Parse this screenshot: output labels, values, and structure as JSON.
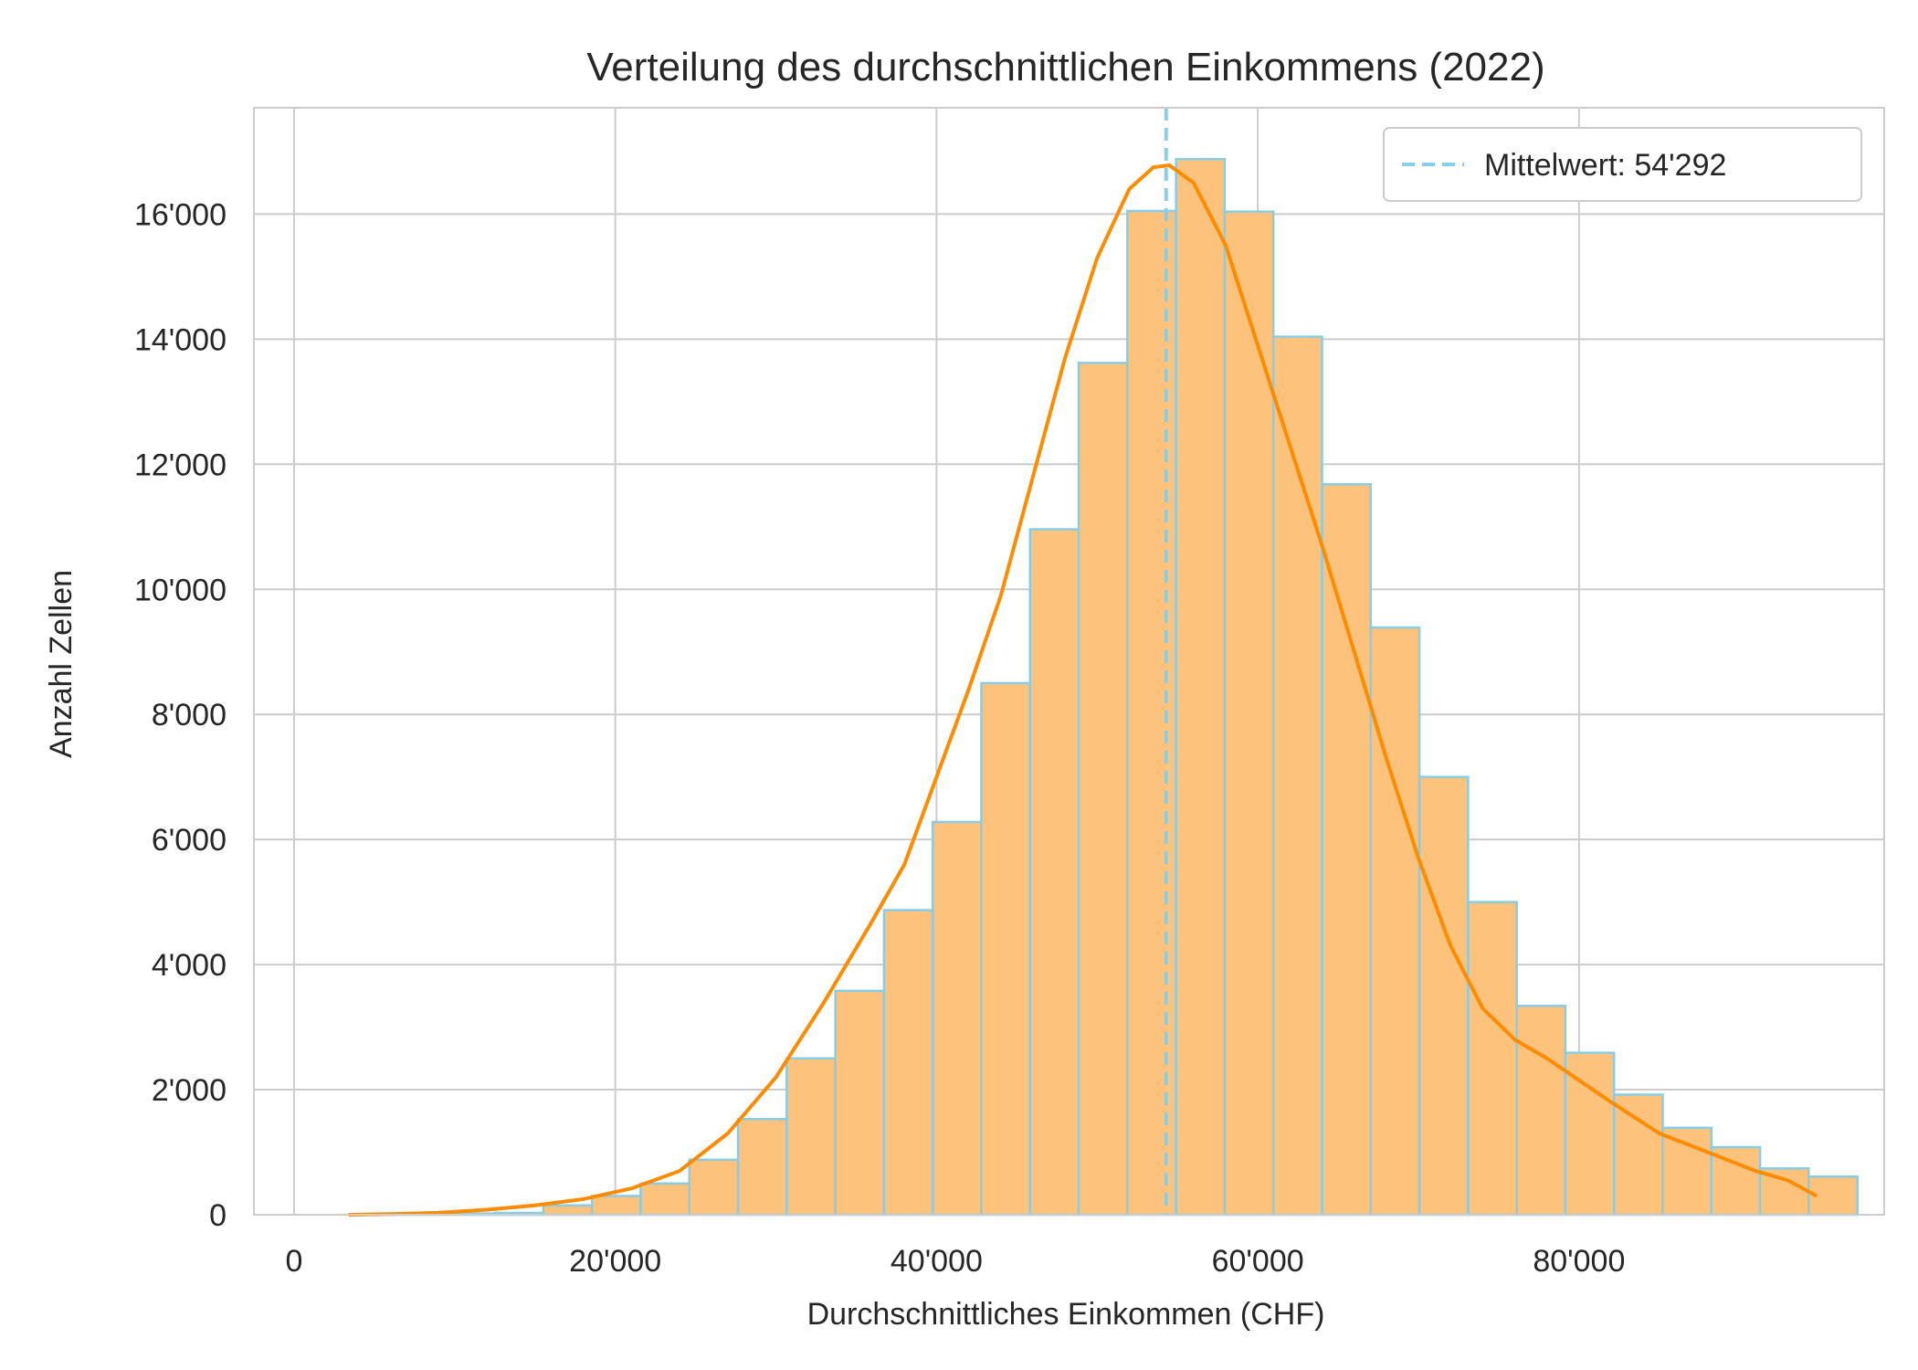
{
  "chart_data": {
    "type": "bar",
    "title": "Verteilung des durchschnittlichen Einkommens (2022)",
    "xlabel": "Durchschnittliches Einkommen (CHF)",
    "ylabel": "Anzahl Zellen",
    "xlim": [
      -2500,
      99000
    ],
    "ylim": [
      0,
      17700
    ],
    "grid": true,
    "legend_position": "top-right",
    "x_ticks": [
      0,
      20000,
      40000,
      60000,
      80000
    ],
    "x_tick_labels": [
      "0",
      "20'000",
      "40'000",
      "60'000",
      "80'000"
    ],
    "y_ticks": [
      0,
      2000,
      4000,
      6000,
      8000,
      10000,
      12000,
      14000,
      16000
    ],
    "y_tick_labels": [
      "0",
      "2'000",
      "4'000",
      "6'000",
      "8'000",
      "10'000",
      "12'000",
      "14'000",
      "16'000"
    ],
    "histogram": {
      "bin_start": 3400,
      "bin_width": 3030,
      "counts": [
        5,
        10,
        20,
        30,
        150,
        300,
        500,
        880,
        1530,
        2500,
        3580,
        4870,
        6280,
        8500,
        10960,
        13620,
        16050,
        16880,
        16040,
        14040,
        11680,
        9390,
        7000,
        5000,
        3340,
        2590,
        1920,
        1390,
        1080,
        740,
        610
      ],
      "fill_color": "#fdc27c",
      "edge_color": "#87cde6"
    },
    "kde": {
      "x": [
        3400,
        6000,
        9000,
        12000,
        15000,
        18000,
        21000,
        24000,
        27000,
        30000,
        33000,
        36000,
        38000,
        40000,
        42000,
        44000,
        46000,
        48000,
        50000,
        52000,
        53500,
        54500,
        56000,
        58000,
        60000,
        62000,
        64000,
        66000,
        68000,
        70000,
        72000,
        74000,
        76000,
        78000,
        80000,
        82000,
        85000,
        88000,
        91000,
        93000,
        94800
      ],
      "y": [
        0,
        10,
        30,
        80,
        150,
        250,
        420,
        700,
        1300,
        2200,
        3400,
        4700,
        5600,
        7000,
        8400,
        9900,
        11800,
        13700,
        15300,
        16400,
        16750,
        16780,
        16500,
        15500,
        13900,
        12300,
        10700,
        9000,
        7300,
        5700,
        4300,
        3300,
        2800,
        2500,
        2150,
        1800,
        1300,
        1000,
        700,
        550,
        300
      ],
      "color": "#ff8c00"
    },
    "mean_line": {
      "value": 54292,
      "label": "Mittelwert: 54'292",
      "color": "#87ceeb"
    }
  }
}
